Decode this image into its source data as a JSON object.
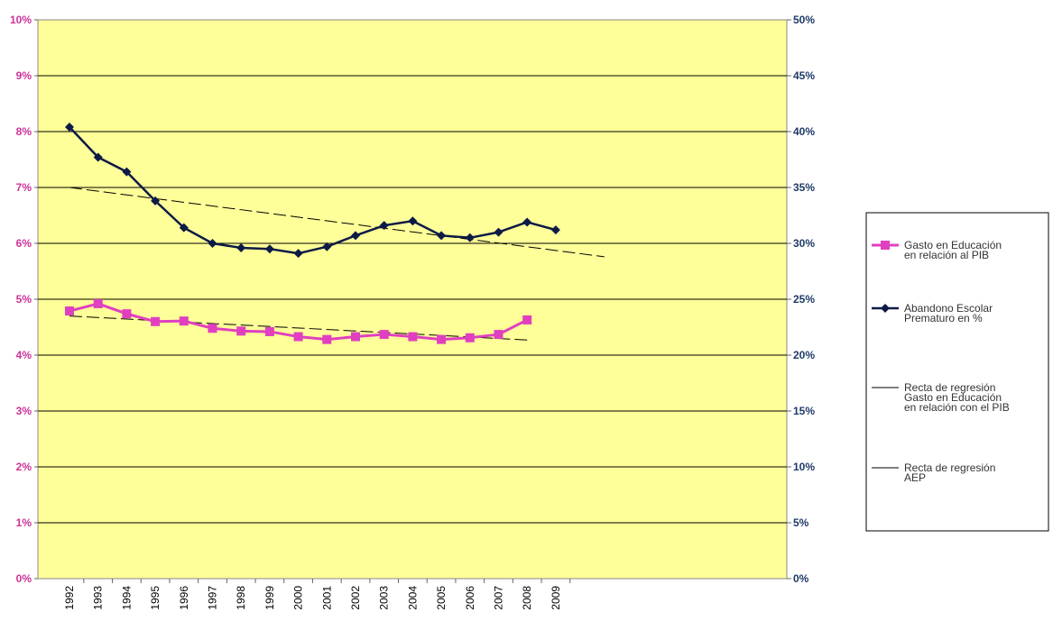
{
  "chart_data": {
    "type": "line",
    "title": "",
    "xlabel": "",
    "ylabel_left": "",
    "ylabel_right": "",
    "categories": [
      "1992",
      "1993",
      "1994",
      "1995",
      "1996",
      "1997",
      "1998",
      "1999",
      "2000",
      "2001",
      "2002",
      "2003",
      "2004",
      "2005",
      "2006",
      "2007",
      "2008",
      "2009"
    ],
    "y_left": {
      "min": 0,
      "max": 10,
      "ticks": [
        0,
        1,
        2,
        3,
        4,
        5,
        6,
        7,
        8,
        9,
        10
      ],
      "tick_labels": [
        "0%",
        "1%",
        "2%",
        "3%",
        "4%",
        "5%",
        "6%",
        "7%",
        "8%",
        "9%",
        "10%"
      ]
    },
    "y_right": {
      "min": 0,
      "max": 50,
      "ticks": [
        0,
        5,
        10,
        15,
        20,
        25,
        30,
        35,
        40,
        45,
        50
      ],
      "tick_labels": [
        "0%",
        "5%",
        "10%",
        "15%",
        "20%",
        "25%",
        "30%",
        "35%",
        "40%",
        "45%",
        "50%"
      ]
    },
    "grid": true,
    "legend_position": "right",
    "series": [
      {
        "name": "Gasto en Educación en relación al PIB",
        "axis": "left",
        "color": "#e040c0",
        "marker": "square",
        "values": [
          4.79,
          4.92,
          4.74,
          4.6,
          4.61,
          4.48,
          4.43,
          4.42,
          4.33,
          4.28,
          4.33,
          4.37,
          4.33,
          4.28,
          4.31,
          4.37,
          4.63,
          null
        ]
      },
      {
        "name": "Abandono Escolar Prematuro en %",
        "axis": "right",
        "color": "#0d1a46",
        "marker": "diamond",
        "values": [
          40.4,
          37.7,
          36.4,
          33.8,
          31.4,
          30.0,
          29.6,
          29.5,
          29.1,
          29.7,
          30.7,
          31.6,
          32.0,
          30.7,
          30.5,
          31.0,
          31.9,
          31.2
        ]
      }
    ],
    "trendlines": [
      {
        "name": "Recta de regresión Gasto en Educación en relación con el PIB",
        "axis": "left",
        "color": "#000000",
        "from": {
          "x": "1992",
          "y": 4.7
        },
        "to": {
          "x": "2008",
          "y": 4.27
        }
      },
      {
        "name": "Recta de regresión AEP",
        "axis": "right",
        "color": "#000000",
        "from": {
          "x": "1992",
          "y": 35.0
        },
        "to_index": 18.7,
        "to_y": 28.8
      }
    ],
    "legend": [
      {
        "lines": [
          "Gasto en Educación",
          "en relación al PIB"
        ],
        "style": "pink-square"
      },
      {
        "lines": [
          "Abandono Escolar",
          "Prematuro en %"
        ],
        "style": "navy-diamond"
      },
      {
        "lines": [
          "Recta de regresión",
          "Gasto en Educación",
          "en relación con el PIB"
        ],
        "style": "plain-line"
      },
      {
        "lines": [
          "Recta de regresión",
          "AEP"
        ],
        "style": "plain-line"
      }
    ],
    "colors": {
      "plot_bg": "#ffff99",
      "left_tick": "#cc3399",
      "right_tick": "#1f3a66",
      "grid": "#000000"
    }
  }
}
